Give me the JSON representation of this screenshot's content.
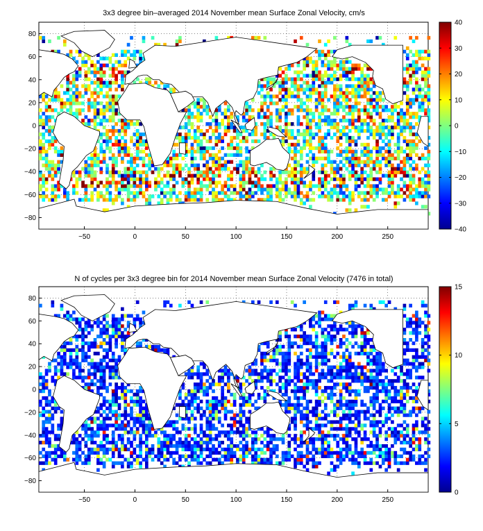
{
  "chart_data": [
    {
      "type": "heatmap",
      "title": "3x3 degree bin–averaged 2014 November mean Surface Zonal Velocity, cm/s",
      "xlim": [
        -95,
        290
      ],
      "ylim": [
        -90,
        90
      ],
      "xticks": [
        -50,
        0,
        50,
        100,
        150,
        200,
        250
      ],
      "yticks": [
        -80,
        -60,
        -40,
        -20,
        0,
        20,
        40,
        60,
        80
      ],
      "xtick_labels": [
        "−50",
        "0",
        "50",
        "100",
        "150",
        "200",
        "250"
      ],
      "ytick_labels": [
        "−80",
        "−60",
        "−40",
        "−20",
        "0",
        "20",
        "40",
        "60",
        "80"
      ],
      "grid": true,
      "bin_size_deg": 3,
      "colormap": "jet",
      "colorbar": {
        "min": -40,
        "max": 40,
        "ticks": [
          -40,
          -30,
          -20,
          -10,
          0,
          10,
          20,
          30,
          40
        ],
        "tick_labels": [
          "−40",
          "−30",
          "−20",
          "−10",
          "0",
          "10",
          "20",
          "30",
          "40"
        ]
      }
    },
    {
      "type": "heatmap",
      "title": "N of cycles per 3x3 degree bin for 2014 November mean Surface Zonal Velocity (7476 in total)",
      "xlim": [
        -95,
        290
      ],
      "ylim": [
        -90,
        90
      ],
      "xticks": [
        -50,
        0,
        50,
        100,
        150,
        200,
        250
      ],
      "yticks": [
        -80,
        -60,
        -40,
        -20,
        0,
        20,
        40,
        60,
        80
      ],
      "xtick_labels": [
        "−50",
        "0",
        "50",
        "100",
        "150",
        "200",
        "250"
      ],
      "ytick_labels": [
        "−80",
        "−60",
        "−40",
        "−20",
        "0",
        "20",
        "40",
        "60",
        "80"
      ],
      "grid": true,
      "bin_size_deg": 3,
      "colormap": "jet",
      "colorbar": {
        "min": 0,
        "max": 15,
        "ticks": [
          0,
          5,
          10,
          15
        ],
        "tick_labels": [
          "0",
          "5",
          "10",
          "15"
        ]
      }
    }
  ]
}
